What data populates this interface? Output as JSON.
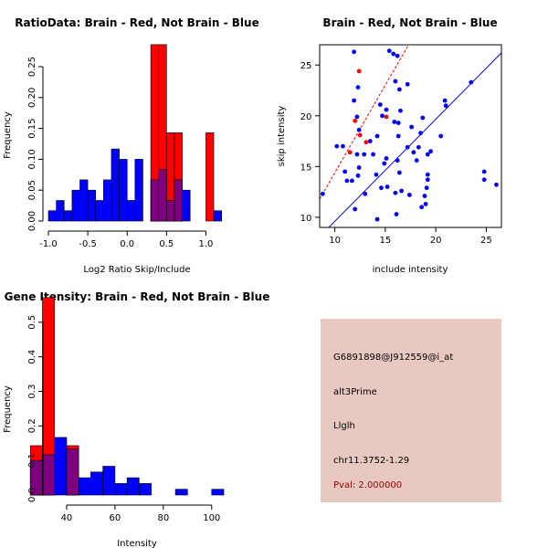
{
  "colors": {
    "red": "#ff0000",
    "blue": "#0000ff",
    "overlap": "#7f007f",
    "info_bg": "#e7c9c2",
    "pval": "#a50000"
  },
  "chart_data": [
    {
      "type": "bar",
      "title": "RatioData: Brain - Red, Not Brain - Blue",
      "xlabel": "Log2 Ratio Skip/Include",
      "ylabel": "Frequency",
      "xlim": [
        -1.0,
        1.25
      ],
      "ylim": [
        0,
        0.25
      ],
      "x_ticks": [
        "-1.0",
        "-0.5",
        "0.0",
        "0.5",
        "1.0"
      ],
      "y_ticks": [
        "0.00",
        "0.05",
        "0.10",
        "0.15",
        "0.20",
        "0.25"
      ],
      "bin_width": 0.1,
      "series": [
        {
          "name": "Not Brain",
          "color": "blue",
          "bins": [
            [
              -1.0,
              0.0167
            ],
            [
              -0.9,
              0.0333
            ],
            [
              -0.8,
              0.0167
            ],
            [
              -0.7,
              0.05
            ],
            [
              -0.6,
              0.0667
            ],
            [
              -0.5,
              0.05
            ],
            [
              -0.4,
              0.0333
            ],
            [
              -0.3,
              0.0667
            ],
            [
              -0.2,
              0.1167
            ],
            [
              -0.1,
              0.1
            ],
            [
              0.0,
              0.0333
            ],
            [
              0.1,
              0.1
            ],
            [
              0.3,
              0.0667
            ],
            [
              0.4,
              0.0833
            ],
            [
              0.5,
              0.0333
            ],
            [
              0.6,
              0.0667
            ],
            [
              0.7,
              0.05
            ],
            [
              1.1,
              0.0167
            ]
          ]
        },
        {
          "name": "Brain",
          "color": "red",
          "bins": [
            [
              0.3,
              0.2857
            ],
            [
              0.4,
              0.2857
            ],
            [
              0.5,
              0.1429
            ],
            [
              0.6,
              0.1429
            ],
            [
              1.0,
              0.1429
            ]
          ]
        }
      ]
    },
    {
      "type": "scatter",
      "title": "Brain - Red, Not Brain - Blue",
      "xlabel": "include intensity",
      "ylabel": "skip intensity",
      "xlim": [
        8.5,
        26.5
      ],
      "ylim": [
        9.0,
        27.0
      ],
      "x_ticks": [
        "10",
        "15",
        "20",
        "25"
      ],
      "y_ticks": [
        "10",
        "15",
        "20",
        "25"
      ],
      "series": [
        {
          "name": "Not Brain",
          "color": "blue",
          "points": [
            [
              11.9,
              26.3
            ],
            [
              15.4,
              26.4
            ],
            [
              15.8,
              26.1
            ],
            [
              16.2,
              25.9
            ],
            [
              16.0,
              23.4
            ],
            [
              12.3,
              22.8
            ],
            [
              17.2,
              23.1
            ],
            [
              16.4,
              22.6
            ],
            [
              11.9,
              21.5
            ],
            [
              14.5,
              21.1
            ],
            [
              20.9,
              21.5
            ],
            [
              15.1,
              20.6
            ],
            [
              16.5,
              20.5
            ],
            [
              14.7,
              20.0
            ],
            [
              18.7,
              19.8
            ],
            [
              12.2,
              19.9
            ],
            [
              15.9,
              19.4
            ],
            [
              16.3,
              19.3
            ],
            [
              17.6,
              18.9
            ],
            [
              12.4,
              18.6
            ],
            [
              14.2,
              18.0
            ],
            [
              18.5,
              18.3
            ],
            [
              20.5,
              18.0
            ],
            [
              16.3,
              18.0
            ],
            [
              13.5,
              17.5
            ],
            [
              10.2,
              17.0
            ],
            [
              10.8,
              17.0
            ],
            [
              17.2,
              16.9
            ],
            [
              18.3,
              16.9
            ],
            [
              19.5,
              16.5
            ],
            [
              17.8,
              16.4
            ],
            [
              12.2,
              16.2
            ],
            [
              12.9,
              16.2
            ],
            [
              13.8,
              16.2
            ],
            [
              19.2,
              16.2
            ],
            [
              18.1,
              15.6
            ],
            [
              15.1,
              15.8
            ],
            [
              16.2,
              15.6
            ],
            [
              14.9,
              15.3
            ],
            [
              12.4,
              14.9
            ],
            [
              16.4,
              14.4
            ],
            [
              11.0,
              14.5
            ],
            [
              14.1,
              14.2
            ],
            [
              12.3,
              14.1
            ],
            [
              19.2,
              14.2
            ],
            [
              24.8,
              14.5
            ],
            [
              11.2,
              13.6
            ],
            [
              11.7,
              13.6
            ],
            [
              24.8,
              13.7
            ],
            [
              26.0,
              13.2
            ],
            [
              19.2,
              13.7
            ],
            [
              15.2,
              13.0
            ],
            [
              14.6,
              12.9
            ],
            [
              19.1,
              12.9
            ],
            [
              16.6,
              12.6
            ],
            [
              16.0,
              12.4
            ],
            [
              13.0,
              12.3
            ],
            [
              17.4,
              12.2
            ],
            [
              18.9,
              12.1
            ],
            [
              19.0,
              11.3
            ],
            [
              8.8,
              12.3
            ],
            [
              18.6,
              11.0
            ],
            [
              12.0,
              10.8
            ],
            [
              16.1,
              10.3
            ],
            [
              14.2,
              9.8
            ],
            [
              23.5,
              23.3
            ],
            [
              21.0,
              21.0
            ]
          ]
        },
        {
          "name": "Brain",
          "color": "red",
          "points": [
            [
              12.4,
              24.4
            ],
            [
              12.0,
              19.5
            ],
            [
              15.1,
              19.9
            ],
            [
              12.5,
              18.1
            ],
            [
              13.1,
              17.4
            ],
            [
              11.5,
              16.4
            ]
          ]
        }
      ],
      "lines": [
        {
          "name": "Brain fit",
          "color": "red",
          "style": "dashed",
          "from": [
            8.5,
            11.8
          ],
          "to": [
            17.3,
            27.0
          ]
        },
        {
          "name": "Not Brain fit",
          "color": "blue",
          "style": "solid",
          "from": [
            9.4,
            9.0
          ],
          "to": [
            26.5,
            26.2
          ]
        }
      ]
    },
    {
      "type": "bar",
      "title": "Gene Itensity: Brain - Red, Not Brain - Blue",
      "xlabel": "Intensity",
      "ylabel": "Frequency",
      "xlim": [
        20,
        105
      ],
      "ylim": [
        0,
        0.6
      ],
      "x_ticks": [
        "40",
        "60",
        "80",
        "100"
      ],
      "y_ticks": [
        "0.0",
        "0.1",
        "0.2",
        "0.3",
        "0.4",
        "0.5"
      ],
      "bin_width": 5,
      "series": [
        {
          "name": "Not Brain",
          "color": "blue",
          "bins": [
            [
              25,
              0.1
            ],
            [
              30,
              0.1167
            ],
            [
              35,
              0.1667
            ],
            [
              40,
              0.1333
            ],
            [
              45,
              0.05
            ],
            [
              50,
              0.0667
            ],
            [
              55,
              0.0833
            ],
            [
              60,
              0.0333
            ],
            [
              65,
              0.05
            ],
            [
              70,
              0.0333
            ],
            [
              85,
              0.0167
            ],
            [
              100,
              0.0167
            ]
          ]
        },
        {
          "name": "Brain",
          "color": "red",
          "bins": [
            [
              25,
              0.1429
            ],
            [
              30,
              0.5714
            ],
            [
              40,
              0.1429
            ]
          ]
        }
      ]
    }
  ],
  "info": {
    "probe": "G6891898@J912559@i_at",
    "event": "alt3Prime",
    "gene": "Llglh",
    "location": "chr11.3752-1.29",
    "pval": "Pval: 2.000000"
  }
}
